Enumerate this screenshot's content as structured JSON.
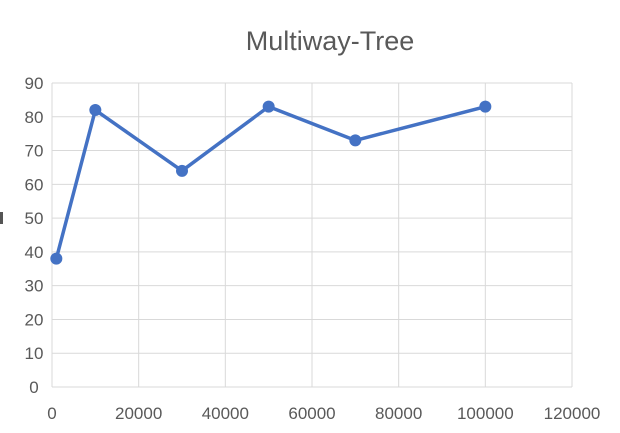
{
  "chart_data": {
    "type": "line",
    "title": "Multiway-Tree",
    "xlabel": "",
    "ylabel": "",
    "x": [
      1000,
      10000,
      30000,
      50000,
      70000,
      100000
    ],
    "series": [
      {
        "values": [
          38,
          82,
          64,
          83,
          73,
          83
        ]
      }
    ],
    "xlim": [
      0,
      120000
    ],
    "ylim": [
      0,
      90
    ],
    "x_ticks": [
      0,
      20000,
      40000,
      60000,
      80000,
      100000,
      120000
    ],
    "y_ticks": [
      0,
      10,
      20,
      30,
      40,
      50,
      60,
      70,
      80,
      90
    ],
    "x_tick_labels": [
      "0",
      "20000",
      "40000",
      "60000",
      "80000",
      "100000",
      "120000"
    ],
    "y_tick_labels": [
      "0",
      "10",
      "20",
      "30",
      "40",
      "50",
      "60",
      "70",
      "80",
      "90"
    ],
    "grid": true,
    "legend": "none",
    "colors": {
      "line": "#4472C4",
      "grid": "#D9D9D9",
      "text": "#595959"
    }
  }
}
